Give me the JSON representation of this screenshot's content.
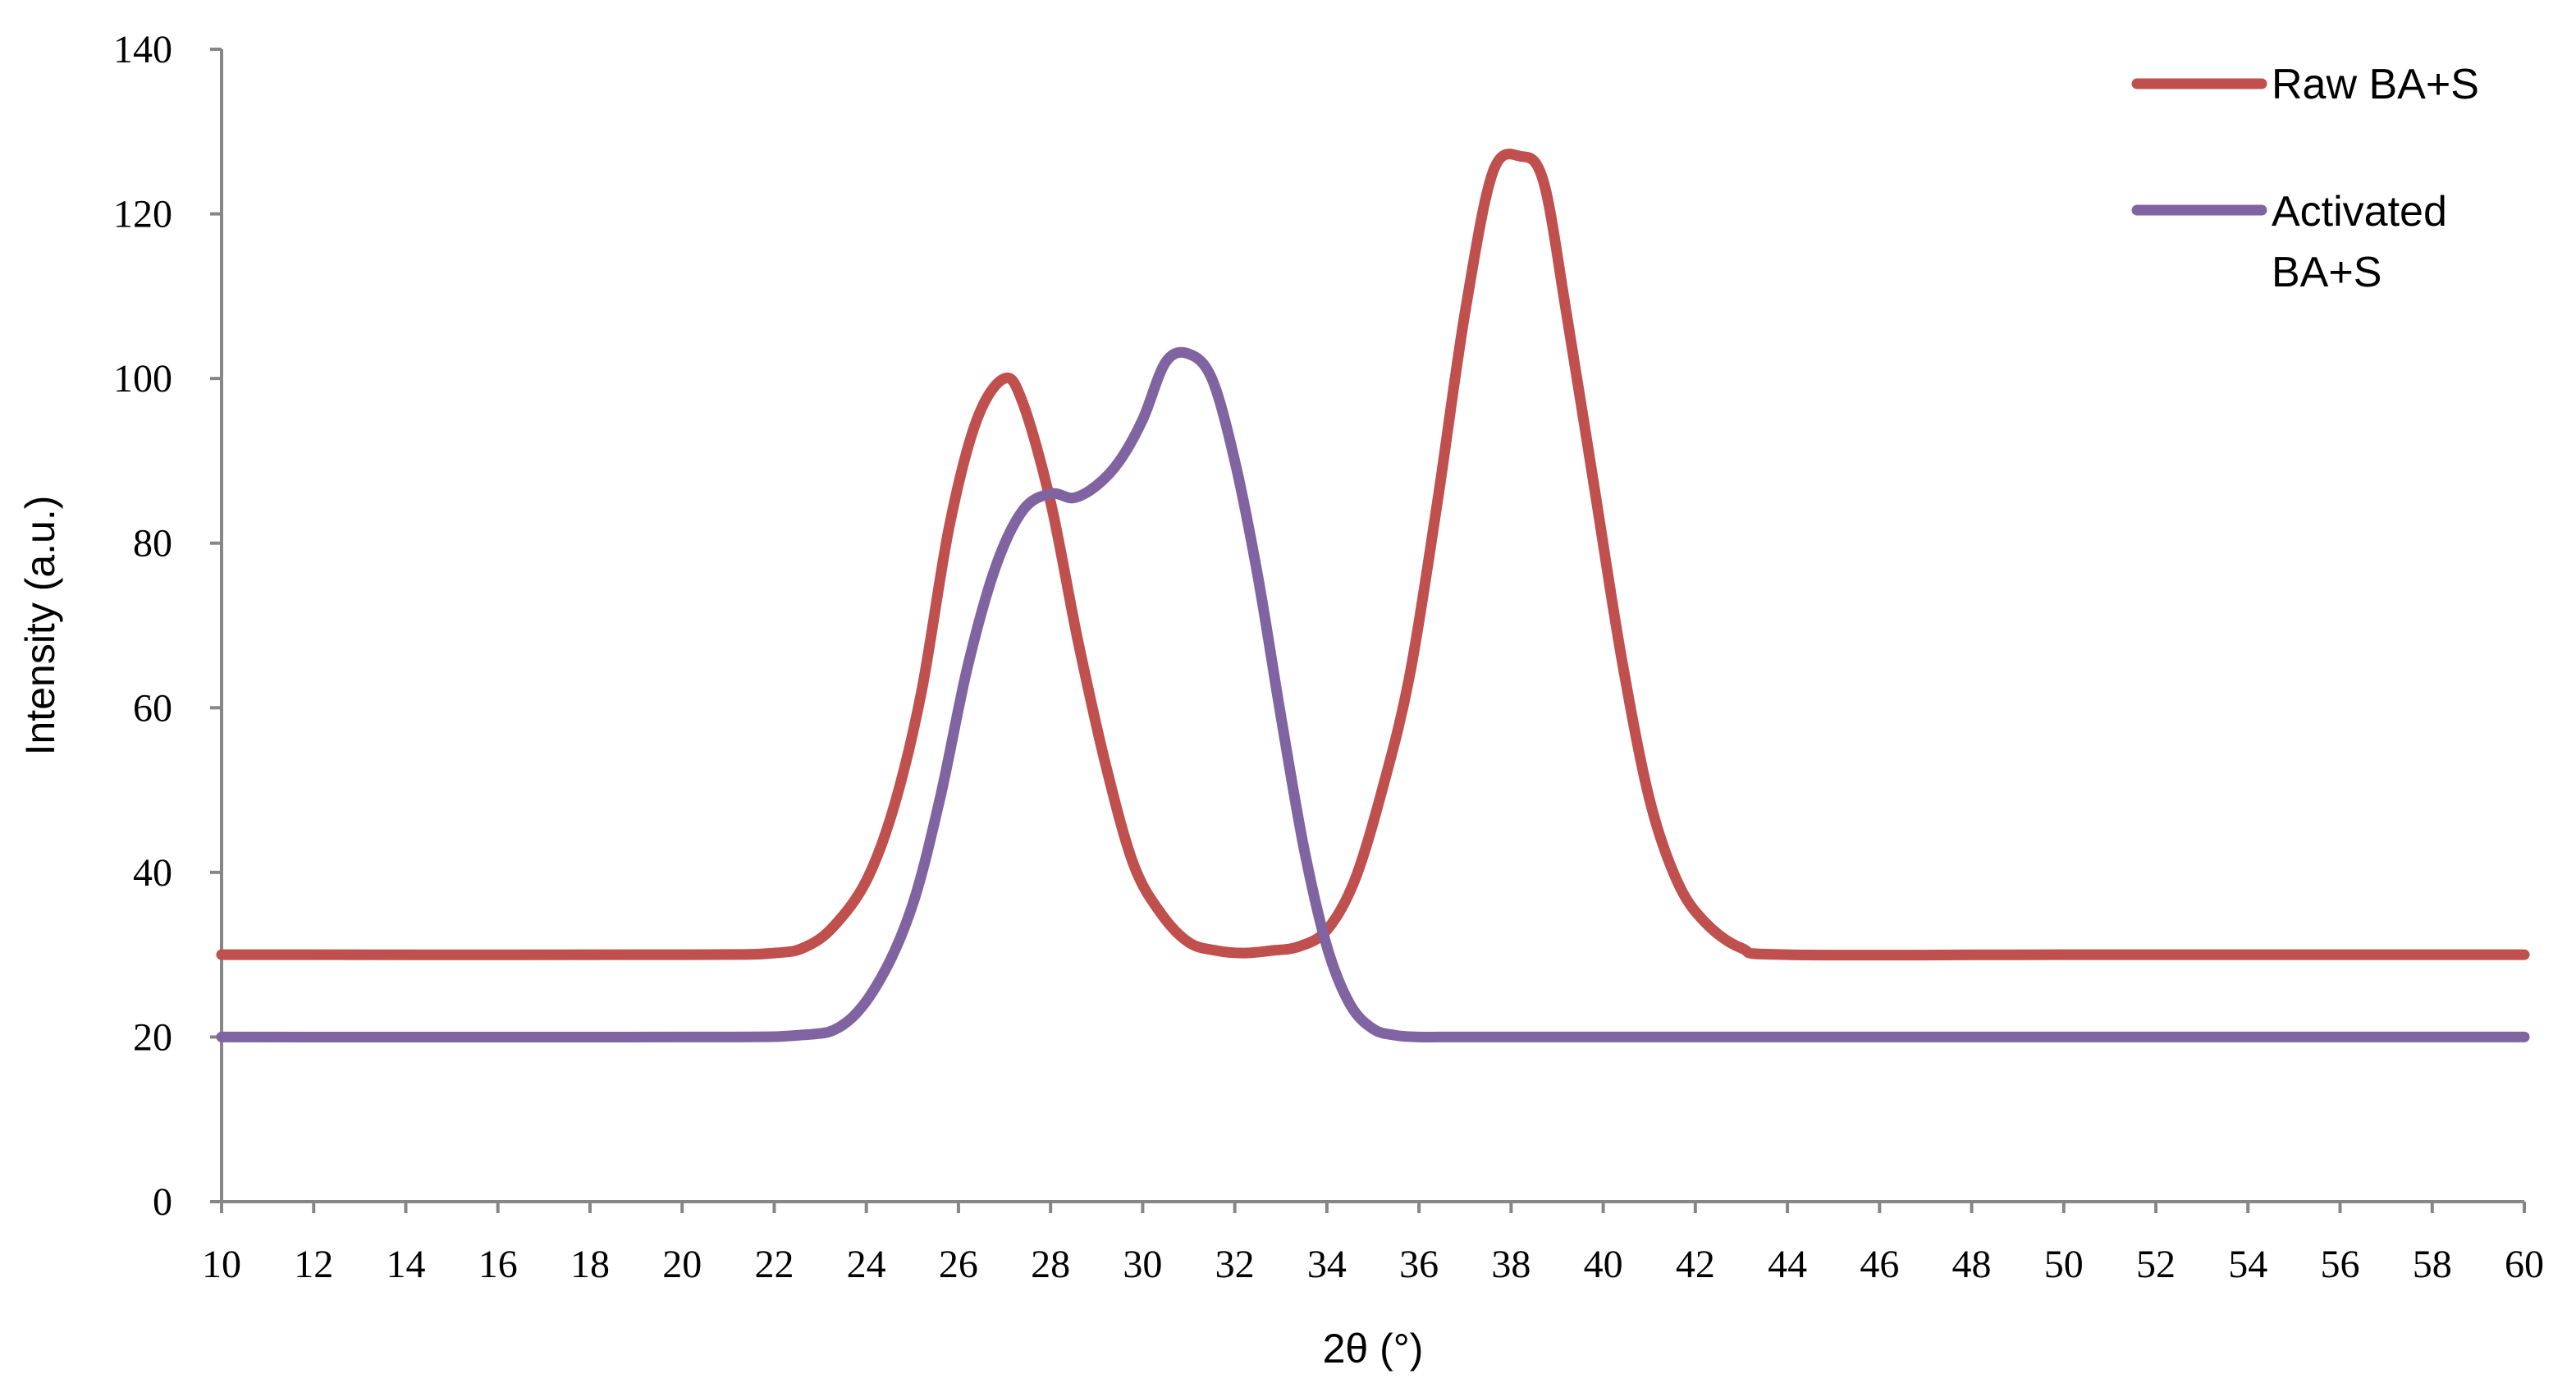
{
  "chart_data": {
    "type": "line",
    "xlabel": "2θ (°)",
    "ylabel": "Intensity (a.u.)",
    "xlim": [
      10,
      60
    ],
    "ylim": [
      0,
      140
    ],
    "xticks": [
      10,
      12,
      14,
      16,
      18,
      20,
      22,
      24,
      26,
      28,
      30,
      32,
      34,
      36,
      38,
      40,
      42,
      44,
      46,
      48,
      50,
      52,
      54,
      56,
      58,
      60
    ],
    "yticks": [
      0,
      20,
      40,
      60,
      80,
      100,
      120,
      140
    ],
    "grid": false,
    "legend_position": "top-right",
    "series": [
      {
        "name": "Raw BA+S",
        "color": "#c0504d",
        "x": [
          10,
          20,
          22,
          22.7,
          23.3,
          24,
          24.6,
          25.2,
          25.8,
          26.4,
          27,
          27.4,
          28,
          28.6,
          29.2,
          29.8,
          30.4,
          31,
          31.6,
          32.2,
          32.8,
          33.4,
          34,
          34.6,
          35.2,
          35.8,
          36.4,
          37,
          37.6,
          38.2,
          38.7,
          39.2,
          39.8,
          40.4,
          41,
          41.6,
          42.2,
          43,
          44,
          50,
          60
        ],
        "y": [
          30,
          30,
          30.2,
          31,
          33.5,
          39,
          48,
          62,
          82,
          95,
          100,
          97,
          85,
          68,
          53,
          41,
          35,
          31.5,
          30.5,
          30.2,
          30.5,
          31,
          33,
          39,
          50,
          64,
          85,
          108,
          125,
          127,
          124,
          108,
          87,
          66,
          49,
          39,
          34,
          30.8,
          30,
          30,
          30
        ]
      },
      {
        "name": "Activated BA+S",
        "color": "#8064a2",
        "x": [
          10,
          20,
          22.5,
          23.5,
          24.3,
          25,
          25.6,
          26.2,
          26.8,
          27.4,
          28,
          28.5,
          29,
          29.5,
          30,
          30.5,
          31,
          31.5,
          32,
          32.5,
          33,
          33.5,
          34,
          34.5,
          35,
          35.5,
          36,
          36.5,
          37.2,
          38,
          50,
          60
        ],
        "y": [
          20,
          20,
          20.2,
          21.5,
          27,
          36,
          49,
          65,
          77,
          84,
          86,
          85.5,
          87,
          90,
          95,
          102,
          103,
          100,
          90,
          76,
          59,
          43,
          31,
          24,
          21,
          20.2,
          20,
          20,
          20,
          20,
          20,
          20
        ]
      }
    ]
  }
}
